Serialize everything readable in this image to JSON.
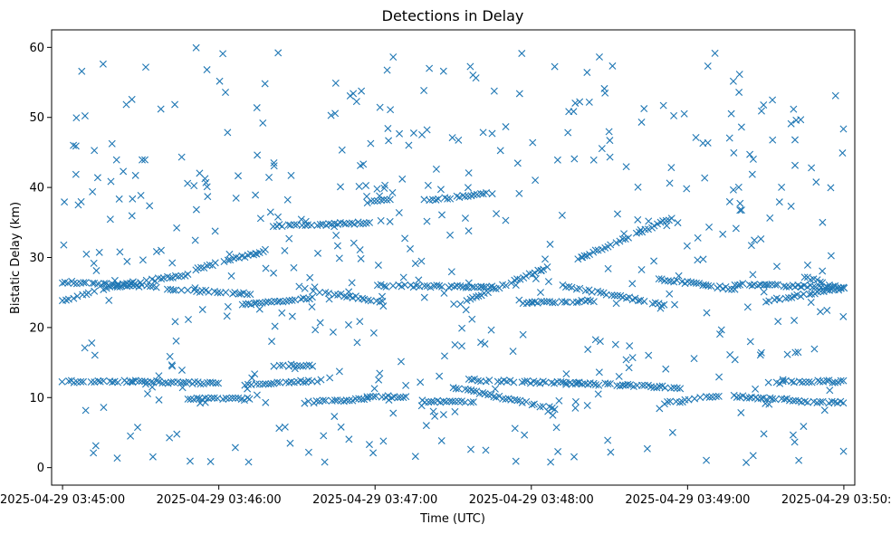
{
  "chart_data": {
    "type": "scatter",
    "title": "Detections in Delay",
    "xlabel": "Time (UTC)",
    "ylabel": "Bistatic Delay (km)",
    "marker": "x",
    "color": "#1f77b4",
    "grid": false,
    "legend": "none",
    "xlim_minutes_after": [
      "2025-04-29 03:45:00",
      -0.07,
      5.07
    ],
    "ylim": [
      -2.5,
      62.5
    ],
    "x_ticks": [
      "2025-04-29 03:45:00",
      "2025-04-29 03:46:00",
      "2025-04-29 03:47:00",
      "2025-04-29 03:48:00",
      "2025-04-29 03:49:00",
      "2025-04-29 03:50:00"
    ],
    "y_ticks": [
      "0",
      "10",
      "20",
      "30",
      "40",
      "50",
      "60"
    ],
    "x_range": [
      "2025-04-29 03:45:00",
      "2025-04-29 03:50:00"
    ],
    "tracks": [
      {
        "t": [
          0.0,
          0.6
        ],
        "delay": [
          26.5,
          25.8
        ]
      },
      {
        "t": [
          0.0,
          0.45
        ],
        "delay": [
          23.8,
          26.6
        ]
      },
      {
        "t": [
          0.35,
          0.8
        ],
        "delay": [
          25.9,
          27.6
        ]
      },
      {
        "t": [
          0.65,
          1.2
        ],
        "delay": [
          25.5,
          24.8
        ]
      },
      {
        "t": [
          0.85,
          1.3
        ],
        "delay": [
          28.3,
          31.0
        ]
      },
      {
        "t": [
          1.15,
          1.6
        ],
        "delay": [
          23.3,
          24.2
        ]
      },
      {
        "t": [
          1.35,
          2.0
        ],
        "delay": [
          34.5,
          35.0
        ]
      },
      {
        "t": [
          1.55,
          2.05
        ],
        "delay": [
          25.5,
          23.7
        ]
      },
      {
        "t": [
          1.95,
          2.1
        ],
        "delay": [
          37.9,
          38.2
        ]
      },
      {
        "t": [
          2.0,
          2.75
        ],
        "delay": [
          26.0,
          25.8
        ]
      },
      {
        "t": [
          2.35,
          2.75
        ],
        "delay": [
          38.2,
          39.2
        ]
      },
      {
        "t": [
          2.55,
          3.1
        ],
        "delay": [
          23.5,
          28.6
        ]
      },
      {
        "t": [
          2.95,
          3.4
        ],
        "delay": [
          23.5,
          23.8
        ]
      },
      {
        "t": [
          3.2,
          3.85
        ],
        "delay": [
          26.0,
          23.2
        ]
      },
      {
        "t": [
          3.3,
          3.9
        ],
        "delay": [
          29.8,
          35.6
        ]
      },
      {
        "t": [
          3.8,
          4.3
        ],
        "delay": [
          27.0,
          25.5
        ]
      },
      {
        "t": [
          4.3,
          4.95
        ],
        "delay": [
          26.2,
          25.8
        ]
      },
      {
        "t": [
          4.5,
          5.0
        ],
        "delay": [
          23.8,
          25.6
        ]
      },
      {
        "t": [
          4.75,
          5.0
        ],
        "delay": [
          27.2,
          25.5
        ]
      },
      {
        "t": [
          0.0,
          0.45
        ],
        "delay": [
          12.3,
          12.3
        ]
      },
      {
        "t": [
          0.45,
          1.0
        ],
        "delay": [
          12.3,
          12.0
        ]
      },
      {
        "t": [
          0.8,
          1.2
        ],
        "delay": [
          9.8,
          9.8
        ]
      },
      {
        "t": [
          1.15,
          1.65
        ],
        "delay": [
          11.8,
          12.4
        ]
      },
      {
        "t": [
          1.35,
          1.6
        ],
        "delay": [
          14.6,
          14.6
        ]
      },
      {
        "t": [
          1.55,
          1.95
        ],
        "delay": [
          9.3,
          9.8
        ]
      },
      {
        "t": [
          1.95,
          2.2
        ],
        "delay": [
          10.2,
          10.0
        ]
      },
      {
        "t": [
          2.3,
          2.65
        ],
        "delay": [
          9.5,
          9.3
        ]
      },
      {
        "t": [
          2.5,
          3.15
        ],
        "delay": [
          11.5,
          8.4
        ]
      },
      {
        "t": [
          2.6,
          3.3
        ],
        "delay": [
          12.5,
          12.0
        ]
      },
      {
        "t": [
          3.25,
          3.95
        ],
        "delay": [
          12.1,
          11.4
        ]
      },
      {
        "t": [
          3.85,
          4.2
        ],
        "delay": [
          9.2,
          10.2
        ]
      },
      {
        "t": [
          4.3,
          4.75
        ],
        "delay": [
          10.2,
          9.5
        ]
      },
      {
        "t": [
          4.55,
          5.0
        ],
        "delay": [
          12.3,
          12.3
        ]
      },
      {
        "t": [
          4.75,
          5.0
        ],
        "delay": [
          9.3,
          9.3
        ]
      }
    ],
    "noise_points_per_minute": 95,
    "noise_delay_range": [
      0.5,
      60.0
    ]
  }
}
